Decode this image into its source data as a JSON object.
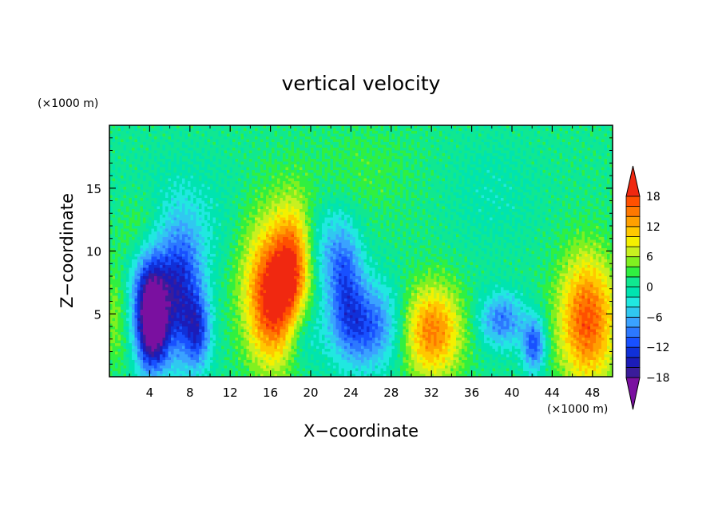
{
  "chart_data": {
    "type": "heatmap",
    "title": "vertical velocity",
    "xlabel": "X−coordinate",
    "ylabel": "Z−coordinate",
    "x_unit": "(×1000 m)",
    "y_unit": "(×1000 m)",
    "xlim": [
      0,
      50
    ],
    "ylim": [
      0,
      20
    ],
    "x_ticks": [
      "4",
      "8",
      "12",
      "16",
      "20",
      "24",
      "28",
      "32",
      "36",
      "40",
      "44",
      "48"
    ],
    "x_tick_values": [
      4,
      8,
      12,
      16,
      20,
      24,
      28,
      32,
      36,
      40,
      44,
      48
    ],
    "y_ticks": [
      "5",
      "10",
      "15"
    ],
    "y_tick_values": [
      5,
      10,
      15
    ],
    "colorbar": {
      "levels": [
        -20,
        -18,
        -16,
        -14,
        -12,
        -10,
        -8,
        -6,
        -4,
        -2,
        0,
        2,
        4,
        6,
        8,
        10,
        12,
        14,
        16,
        18,
        20
      ],
      "tick_labels": [
        "18",
        "12",
        "6",
        "0",
        "−6",
        "−12",
        "−18"
      ],
      "tick_values": [
        18,
        12,
        6,
        0,
        -6,
        -12,
        -18
      ],
      "colors": [
        "#7a10a0",
        "#3a1c9a",
        "#1c1cb8",
        "#1030d8",
        "#1850ff",
        "#2c78ff",
        "#3aa2ff",
        "#30c8f0",
        "#20e8e0",
        "#00e4b0",
        "#10e890",
        "#30f040",
        "#80f020",
        "#c8f020",
        "#f4f000",
        "#ffc800",
        "#ffa000",
        "#ff7800",
        "#ff5000",
        "#f02810",
        "#f4a0a0"
      ],
      "extend": "both"
    },
    "features": [
      {
        "x": 4.2,
        "z": 3.6,
        "sx": 1.1,
        "sz": 2.4,
        "v": -19
      },
      {
        "x": 4.0,
        "z": 7.0,
        "sx": 1.3,
        "sz": 2.5,
        "v": -12
      },
      {
        "x": 7.0,
        "z": 6.5,
        "sx": 1.6,
        "sz": 3.8,
        "v": -14
      },
      {
        "x": 8.8,
        "z": 3.5,
        "sx": 0.9,
        "sz": 2.0,
        "v": -10
      },
      {
        "x": 3.0,
        "z": 11.5,
        "sx": 1.8,
        "sz": 2.2,
        "v": 4
      },
      {
        "x": 16.2,
        "z": 6.0,
        "sx": 1.8,
        "sz": 3.6,
        "v": 17
      },
      {
        "x": 18.3,
        "z": 9.0,
        "sx": 1.3,
        "sz": 3.4,
        "v": 11
      },
      {
        "x": 15.5,
        "z": 10.5,
        "sx": 3.0,
        "sz": 4.0,
        "v": 5
      },
      {
        "x": 19.0,
        "z": 3.5,
        "sx": 1.2,
        "sz": 2.0,
        "v": -5
      },
      {
        "x": 25.5,
        "z": 4.0,
        "sx": 2.5,
        "sz": 2.4,
        "v": -12
      },
      {
        "x": 23.5,
        "z": 8.0,
        "sx": 1.2,
        "sz": 3.0,
        "v": -9
      },
      {
        "x": 21.5,
        "z": 10.0,
        "sx": 1.5,
        "sz": 2.5,
        "v": -5
      },
      {
        "x": 32.0,
        "z": 3.6,
        "sx": 2.1,
        "sz": 2.6,
        "v": 14
      },
      {
        "x": 39.0,
        "z": 4.5,
        "sx": 1.6,
        "sz": 1.5,
        "v": -10
      },
      {
        "x": 42.2,
        "z": 2.5,
        "sx": 0.8,
        "sz": 1.5,
        "v": -12
      },
      {
        "x": 47.5,
        "z": 4.5,
        "sx": 2.0,
        "sz": 3.6,
        "v": 16
      },
      {
        "x": 10.0,
        "z": 12.0,
        "sx": 7.0,
        "sz": 3.5,
        "v": -3
      },
      {
        "x": 25.0,
        "z": 16.0,
        "sx": 4.0,
        "sz": 3.0,
        "v": 2
      },
      {
        "x": 38.0,
        "z": 14.5,
        "sx": 3.0,
        "sz": 3.0,
        "v": -2
      },
      {
        "x": 0.5,
        "z": 5.0,
        "sx": 1.0,
        "sz": 3.0,
        "v": 4
      }
    ],
    "grid": false,
    "legend": "right"
  }
}
